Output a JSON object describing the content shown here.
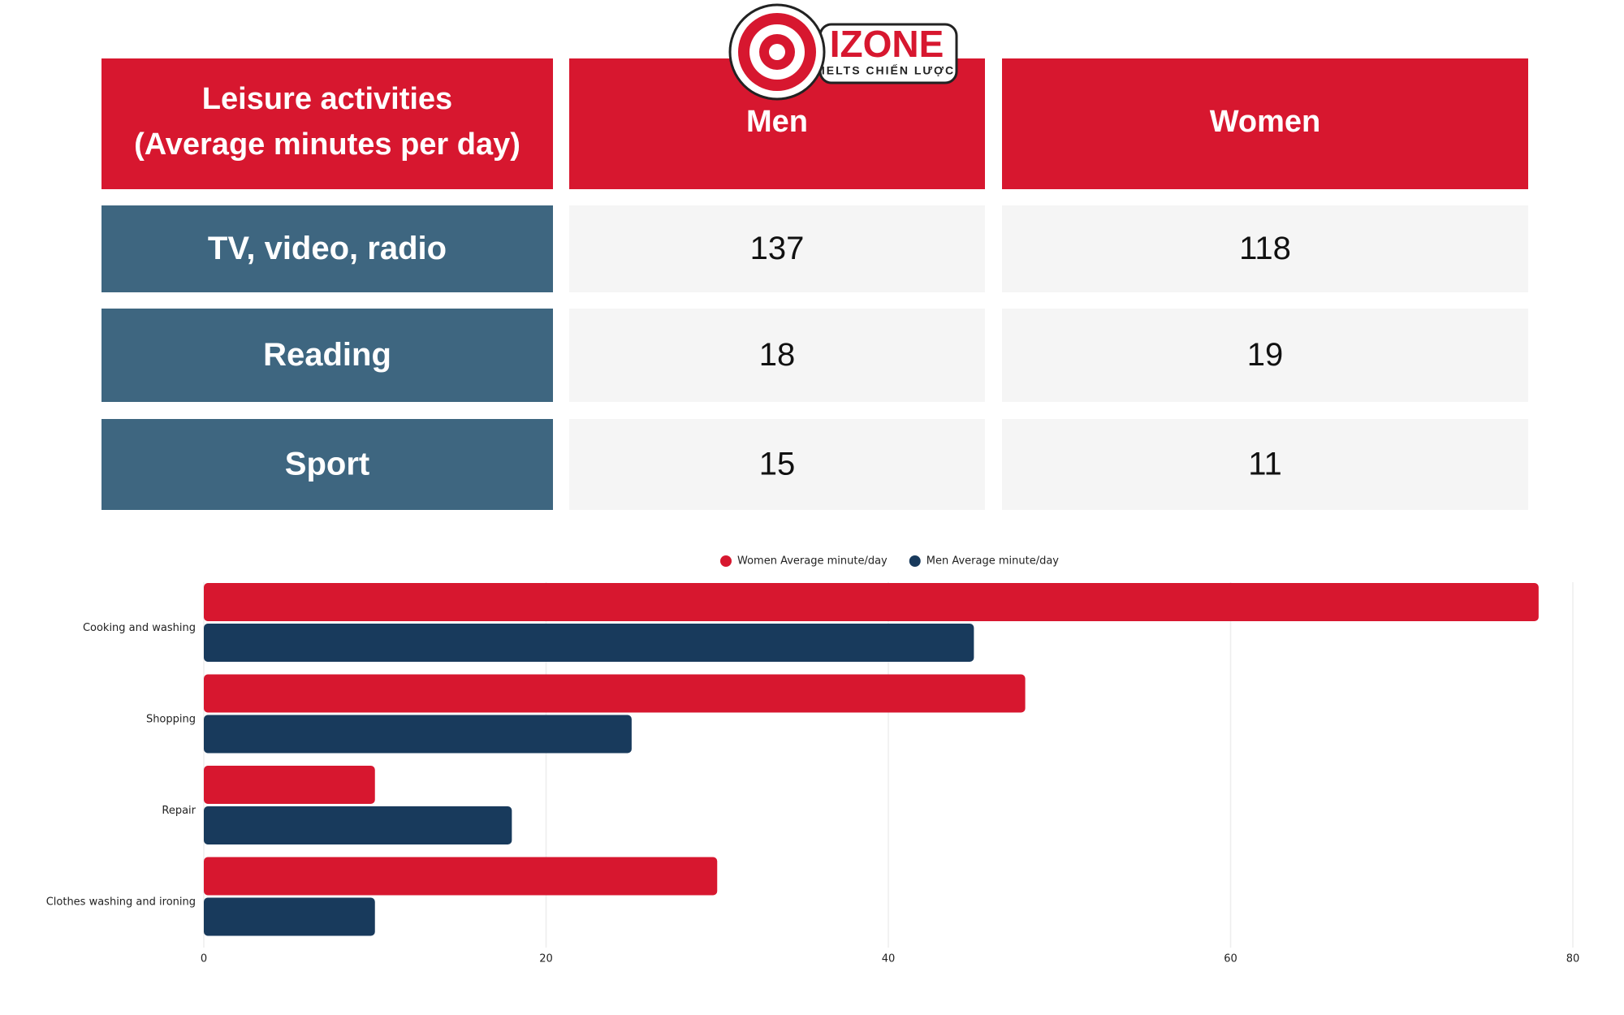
{
  "logo": {
    "brand": "IZONE",
    "tagline": "IELTS CHIẾN LƯỢC"
  },
  "table": {
    "header": {
      "activity": [
        "Leisure activities",
        "(Average minutes per day)"
      ],
      "men": "Men",
      "women": "Women"
    },
    "rows": [
      [
        "TV, video, radio",
        137,
        118
      ],
      [
        "Reading",
        18,
        19
      ],
      [
        "Sport",
        15,
        11
      ]
    ]
  },
  "chart_data": {
    "type": "hbar",
    "categories": [
      "Cooking and washing",
      "Shopping",
      "Repair",
      "Clothes washing and ironing"
    ],
    "series": [
      {
        "name": "Women Average minute/day",
        "color": "#d7172f",
        "values": [
          78,
          48,
          10,
          30
        ]
      },
      {
        "name": "Men Average minute/day",
        "color": "#183a5c",
        "values": [
          45,
          25,
          18,
          10
        ]
      }
    ],
    "xlim": [
      0,
      80
    ],
    "xticks": [
      0,
      20,
      40,
      60,
      80
    ],
    "grid": true,
    "legend": "top"
  }
}
